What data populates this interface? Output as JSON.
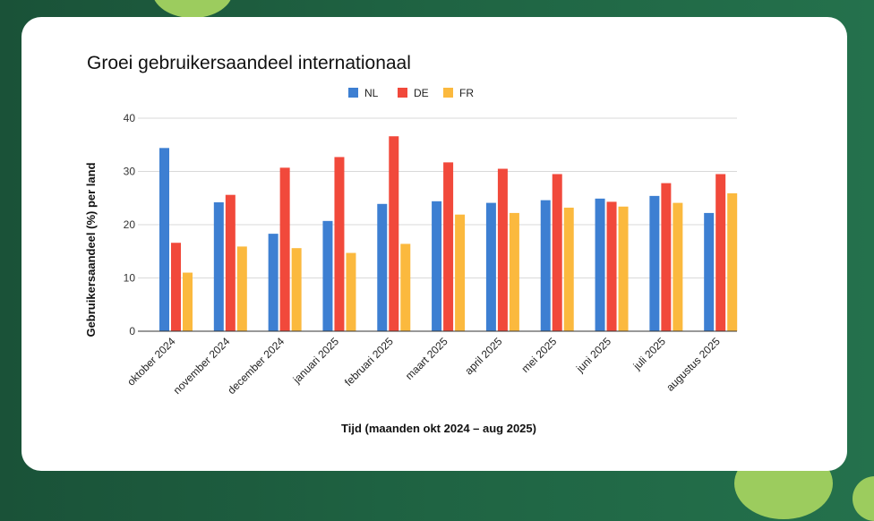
{
  "colors": {
    "NL": "#3d7fd2",
    "DE": "#f1493b",
    "FR": "#fbb93e",
    "grid": "#d9d9d9",
    "axis": "#333333",
    "card": "#ffffff",
    "background": "#1f6443",
    "accent_blob": "#9ccc5e"
  },
  "chart_data": {
    "type": "bar",
    "title": "Groei gebruikersaandeel internationaal",
    "xlabel": "Tijd (maanden okt 2024 – aug 2025)",
    "ylabel": "Gebruikersaandeel (%) per land",
    "ylim": [
      0,
      40
    ],
    "yticks": [
      "0",
      "10",
      "20",
      "30",
      "40"
    ],
    "grid": true,
    "legend_position": "top-center",
    "categories": [
      "oktober 2024",
      "november 2024",
      "december 2024",
      "januari 2025",
      "februari 2025",
      "maart 2025",
      "april 2025",
      "mei 2025",
      "juni 2025",
      "juli 2025",
      "augustus 2025"
    ],
    "series": [
      {
        "name": "NL",
        "values": [
          34.4,
          24.2,
          18.3,
          20.7,
          23.9,
          24.4,
          24.1,
          24.6,
          24.9,
          25.4,
          22.2
        ]
      },
      {
        "name": "DE",
        "values": [
          16.6,
          25.6,
          30.7,
          32.7,
          36.6,
          31.7,
          30.5,
          29.5,
          24.3,
          27.8,
          29.5
        ]
      },
      {
        "name": "FR",
        "values": [
          11.0,
          15.9,
          15.6,
          14.7,
          16.4,
          21.9,
          22.2,
          23.2,
          23.4,
          24.1,
          25.9
        ]
      }
    ]
  }
}
